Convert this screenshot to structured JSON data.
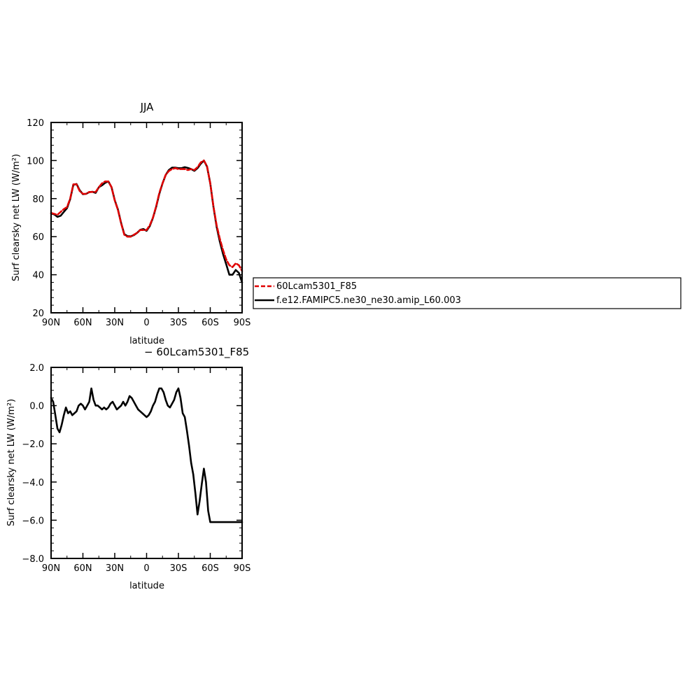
{
  "chart_data": [
    {
      "type": "line",
      "title": "JJA",
      "xlabel": "latitude",
      "ylabel": "Surf clearsky net LW (W/m²)",
      "x_ticks": [
        "90N",
        "60N",
        "30N",
        "0",
        "30S",
        "60S",
        "90S"
      ],
      "x_tick_values": [
        90,
        60,
        30,
        0,
        -30,
        -60,
        -90
      ],
      "xlim": [
        90,
        -90
      ],
      "ylim": [
        20,
        120
      ],
      "y_ticks": [
        "20",
        "40",
        "60",
        "80",
        "100",
        "120"
      ],
      "y_tick_values": [
        20,
        40,
        60,
        80,
        100,
        120
      ],
      "legend_position": "right",
      "x": [
        90,
        87,
        84,
        81,
        78,
        75,
        72,
        69,
        66,
        63,
        60,
        57,
        54,
        51,
        48,
        45,
        42,
        39,
        36,
        33,
        30,
        27,
        24,
        21,
        18,
        15,
        12,
        9,
        6,
        3,
        0,
        -3,
        -6,
        -9,
        -12,
        -15,
        -18,
        -21,
        -24,
        -27,
        -30,
        -33,
        -36,
        -39,
        -42,
        -45,
        -48,
        -51,
        -54,
        -57,
        -60,
        -63,
        -66,
        -69,
        -72,
        -75,
        -78,
        -81,
        -84,
        -87,
        -90
      ],
      "series": [
        {
          "name": "60Lcam5301_F85",
          "color": "#e00000",
          "dash": true,
          "values": [
            72.5,
            72,
            71.5,
            73,
            74.5,
            75.5,
            80,
            87.5,
            87.5,
            84,
            82.5,
            82.5,
            83.5,
            83.5,
            83.5,
            86,
            88,
            89,
            89,
            86,
            79,
            74,
            67,
            61,
            60,
            60,
            61,
            62,
            63.5,
            63.5,
            63.5,
            66,
            70,
            76,
            83,
            88,
            92.5,
            94.5,
            95.5,
            96,
            95.5,
            95.5,
            95.5,
            95,
            95.5,
            95,
            96.5,
            99,
            100,
            97,
            88,
            76,
            66,
            59,
            53,
            48,
            45,
            44,
            46,
            45,
            42
          ]
        },
        {
          "name": "f.e12.FAMIPC5.ne30_ne30.amip_L60.003",
          "color": "#000000",
          "dash": false,
          "values": [
            72.2,
            71.7,
            70.4,
            71,
            73,
            75,
            79.7,
            87.2,
            87.7,
            84.4,
            82.3,
            82.5,
            83.4,
            83.6,
            83,
            86,
            87,
            88.3,
            89,
            86,
            79.2,
            74.2,
            67.2,
            61.3,
            60.3,
            60.2,
            60.8,
            62,
            63.6,
            64,
            63.1,
            65.6,
            69.9,
            75.7,
            82.5,
            88,
            92.4,
            95,
            96.3,
            96.3,
            96,
            96,
            96.5,
            96.1,
            95.5,
            94.6,
            96,
            98.3,
            100,
            96.8,
            88,
            75.8,
            65.2,
            57.5,
            51,
            45.5,
            40,
            40,
            42.5,
            41,
            36
          ]
        }
      ]
    },
    {
      "type": "line",
      "title": "− 60Lcam5301_F85",
      "xlabel": "latitude",
      "ylabel": "Surf clearsky net LW (W/m²)",
      "x_ticks": [
        "90N",
        "60N",
        "30N",
        "0",
        "30S",
        "60S",
        "90S"
      ],
      "x_tick_values": [
        90,
        60,
        30,
        0,
        -30,
        -60,
        -90
      ],
      "xlim": [
        90,
        -90
      ],
      "ylim": [
        -8,
        2
      ],
      "y_ticks": [
        "2.0",
        "0.0",
        "−2.0",
        "−4.0",
        "−6.0",
        "−8.0"
      ],
      "y_tick_values": [
        2,
        0,
        -2,
        -4,
        -6,
        -8
      ],
      "x": [
        90,
        88,
        86,
        84,
        82,
        80,
        78,
        76,
        74,
        72,
        70,
        68,
        66,
        64,
        62,
        60,
        58,
        56,
        54,
        52,
        50,
        48,
        46,
        44,
        42,
        40,
        38,
        36,
        34,
        32,
        30,
        28,
        26,
        24,
        22,
        20,
        18,
        16,
        14,
        12,
        10,
        8,
        6,
        4,
        2,
        0,
        -2,
        -4,
        -6,
        -8,
        -10,
        -12,
        -14,
        -16,
        -18,
        -20,
        -22,
        -24,
        -26,
        -28,
        -30,
        -32,
        -34,
        -36,
        -38,
        -40,
        -42,
        -44,
        -46,
        -48,
        -50,
        -52,
        -54,
        -56,
        -58,
        -60,
        -62,
        -64,
        -66,
        -68,
        -70,
        -72,
        -74,
        -76,
        -78,
        -80,
        -82,
        -84,
        -86,
        -88,
        -90
      ],
      "series": [
        {
          "name": "",
          "color": "#000000",
          "values": [
            0.4,
            0.2,
            -0.5,
            -1.2,
            -1.4,
            -1.0,
            -0.5,
            -0.1,
            -0.4,
            -0.3,
            -0.5,
            -0.4,
            -0.3,
            0.0,
            0.1,
            0.0,
            -0.2,
            0.0,
            0.2,
            0.9,
            0.3,
            0.0,
            0.0,
            -0.1,
            -0.2,
            -0.1,
            -0.2,
            -0.1,
            0.1,
            0.2,
            0.0,
            -0.2,
            -0.1,
            0.0,
            0.2,
            0.0,
            0.2,
            0.5,
            0.4,
            0.2,
            0.0,
            -0.2,
            -0.3,
            -0.4,
            -0.5,
            -0.6,
            -0.5,
            -0.3,
            0.0,
            0.2,
            0.6,
            0.9,
            0.9,
            0.7,
            0.3,
            0.0,
            -0.1,
            0.1,
            0.3,
            0.7,
            0.9,
            0.4,
            -0.4,
            -0.6,
            -1.3,
            -2.1,
            -3.0,
            -3.6,
            -4.6,
            -5.7,
            -5.0,
            -4.1,
            -3.3,
            -4.0,
            -5.5,
            -6.1,
            -6.1,
            -6.1,
            -6.1,
            -6.1,
            -6.1,
            -6.1,
            -6.1,
            -6.1,
            -6.1,
            -6.1,
            -6.1,
            -6.1,
            -6.1,
            -6.1,
            -6.1
          ]
        }
      ]
    }
  ]
}
